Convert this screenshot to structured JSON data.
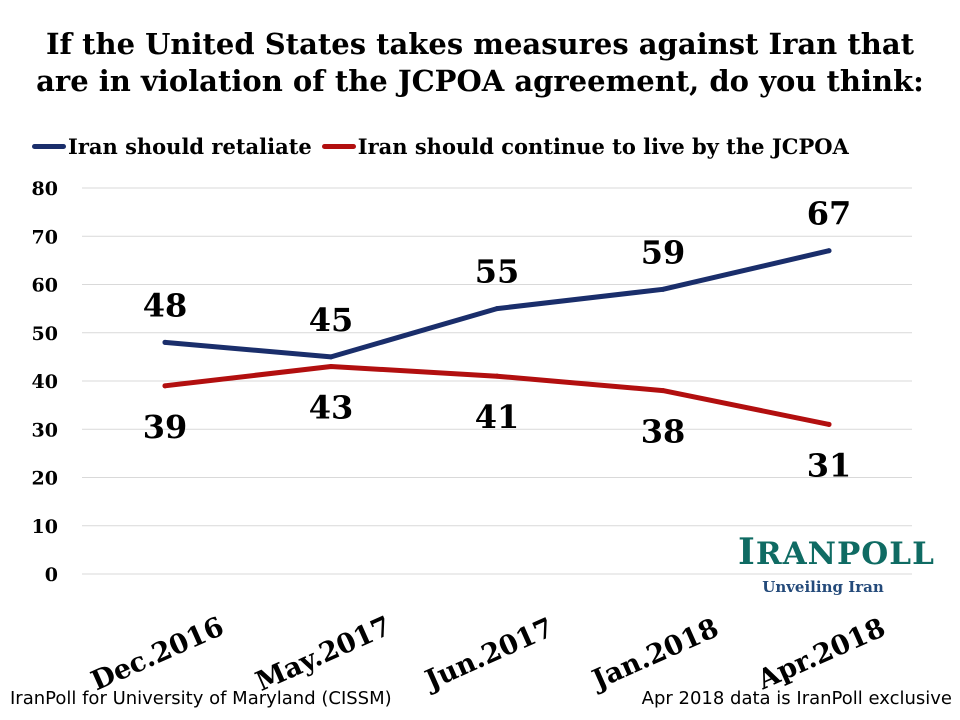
{
  "chart_data": {
    "type": "line",
    "title_lines": [
      "If the United States takes measures against Iran that",
      "are in violation of the JCPOA agreement, do you think:"
    ],
    "categories": [
      "Dec.2016",
      "May.2017",
      "Jun.2017",
      "Jan.2018",
      "Apr.2018"
    ],
    "series": [
      {
        "name": "Iran should retaliate",
        "color": "#1a2e6b",
        "values": [
          48,
          45,
          55,
          59,
          67
        ]
      },
      {
        "name": "Iran should continue to live by the JCPOA",
        "color": "#b20f0f",
        "values": [
          39,
          43,
          41,
          38,
          31
        ]
      }
    ],
    "ylim": [
      0,
      80
    ],
    "yticks": [
      0,
      10,
      20,
      30,
      40,
      50,
      60,
      70,
      80
    ],
    "grid": true,
    "legend_position": "top-left"
  },
  "logo": {
    "name": "IRANPOLL",
    "tagline": "Unveiling Iran"
  },
  "footer": {
    "left": "IranPoll for University of Maryland (CISSM)",
    "right": "Apr 2018 data is IranPoll exclusive"
  }
}
